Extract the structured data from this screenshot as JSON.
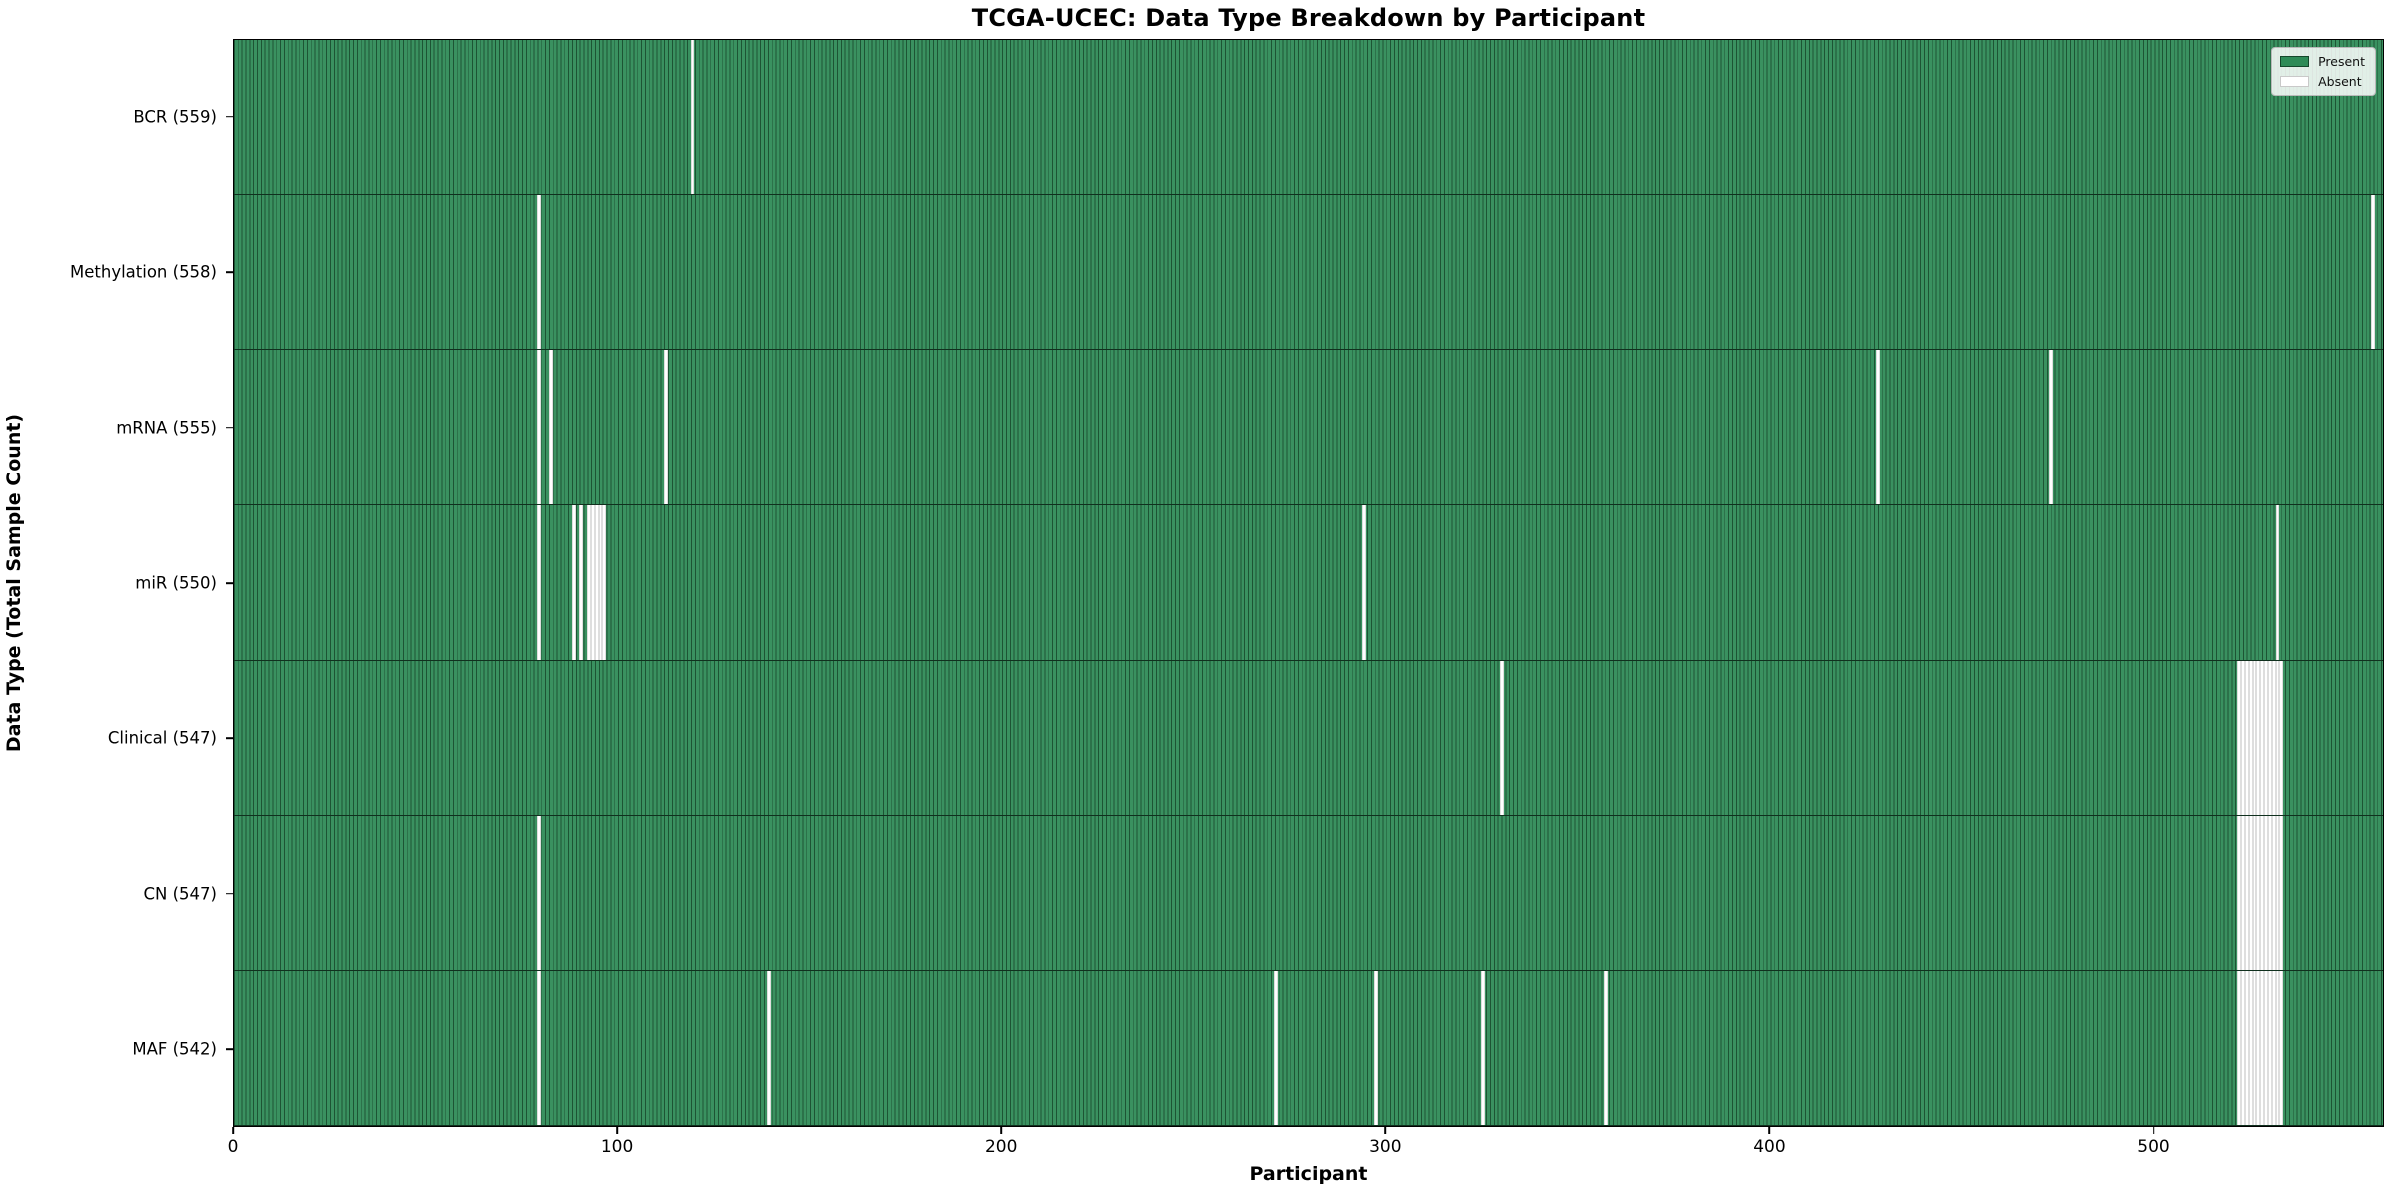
{
  "title": "TCGA-UCEC: Data Type Breakdown by Participant",
  "x_axis": {
    "title": "Participant",
    "ticks": [
      0,
      100,
      200,
      300,
      400,
      500
    ],
    "max": 560
  },
  "y_axis": {
    "title": "Data Type (Total Sample Count)"
  },
  "legend": {
    "present_label": "Present",
    "absent_label": "Absent"
  },
  "colors": {
    "present_fill": "#3a9160",
    "cell_edge": "#1d5434",
    "absent_fill": "#ffffff",
    "legend_present": "#2e8b57"
  },
  "chart_data": {
    "type": "heatmap",
    "title": "TCGA-UCEC: Data Type Breakdown by Participant",
    "xlabel": "Participant",
    "ylabel": "Data Type (Total Sample Count)",
    "x_range": [
      0,
      560
    ],
    "total_participants": 560,
    "legend_entries": [
      "Present",
      "Absent"
    ],
    "legend_position": "upper right",
    "grid": false,
    "rows": [
      {
        "data_type": "BCR",
        "label": "BCR (559)",
        "present_count": 559,
        "absent_participants": [
          119
        ]
      },
      {
        "data_type": "Methylation",
        "label": "Methylation (558)",
        "present_count": 558,
        "absent_participants": [
          79,
          557
        ]
      },
      {
        "data_type": "mRNA",
        "label": "mRNA (555)",
        "present_count": 555,
        "absent_participants": [
          79,
          82,
          112,
          428,
          473
        ]
      },
      {
        "data_type": "miR",
        "label": "miR (550)",
        "present_count": 550,
        "absent_participants": [
          79,
          88,
          90,
          92,
          93,
          94,
          95,
          96,
          294,
          532
        ]
      },
      {
        "data_type": "Clinical",
        "label": "Clinical (547)",
        "present_count": 547,
        "absent_participants": [
          330,
          522,
          523,
          524,
          525,
          526,
          527,
          528,
          529,
          530,
          531,
          532,
          533
        ]
      },
      {
        "data_type": "CN",
        "label": "CN (547)",
        "present_count": 547,
        "absent_participants": [
          79,
          522,
          523,
          524,
          525,
          526,
          527,
          528,
          529,
          530,
          531,
          532,
          533
        ]
      },
      {
        "data_type": "MAF",
        "label": "MAF (542)",
        "present_count": 542,
        "absent_participants": [
          79,
          139,
          271,
          297,
          325,
          357,
          522,
          523,
          524,
          525,
          526,
          527,
          528,
          529,
          530,
          531,
          532,
          533
        ]
      }
    ]
  }
}
